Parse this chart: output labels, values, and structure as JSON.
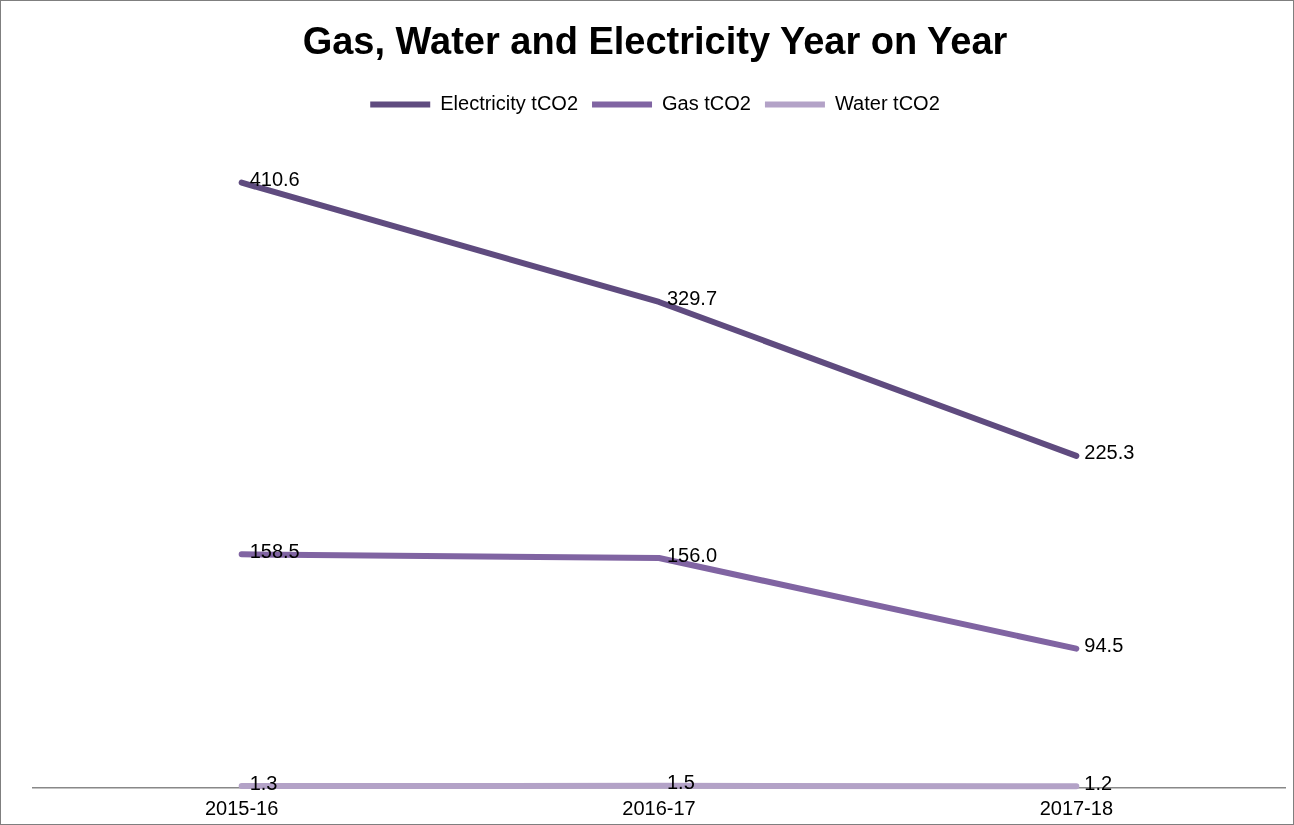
{
  "chart_data": {
    "type": "line",
    "title": "Gas, Water and Electricity Year on Year",
    "categories": [
      "2015-16",
      "2016-17",
      "2017-18"
    ],
    "series": [
      {
        "name": "Electricity tCO2",
        "color": "#5f4b7f",
        "values": [
          410.6,
          329.7,
          225.3
        ],
        "value_labels": [
          "410.6",
          "329.7",
          "225.3"
        ]
      },
      {
        "name": "Gas tCO2",
        "color": "#8064a2",
        "values": [
          158.5,
          156.0,
          94.5
        ],
        "value_labels": [
          "158.5",
          "156.0",
          "94.5"
        ]
      },
      {
        "name": "Water tCO2",
        "color": "#b3a2c7",
        "values": [
          1.3,
          1.5,
          1.2
        ],
        "value_labels": [
          "1.3",
          "1.5",
          "1.2"
        ]
      }
    ],
    "tick_labels": "x",
    "grid": false,
    "legend": "top",
    "marker": "none",
    "line_style": "solid"
  }
}
